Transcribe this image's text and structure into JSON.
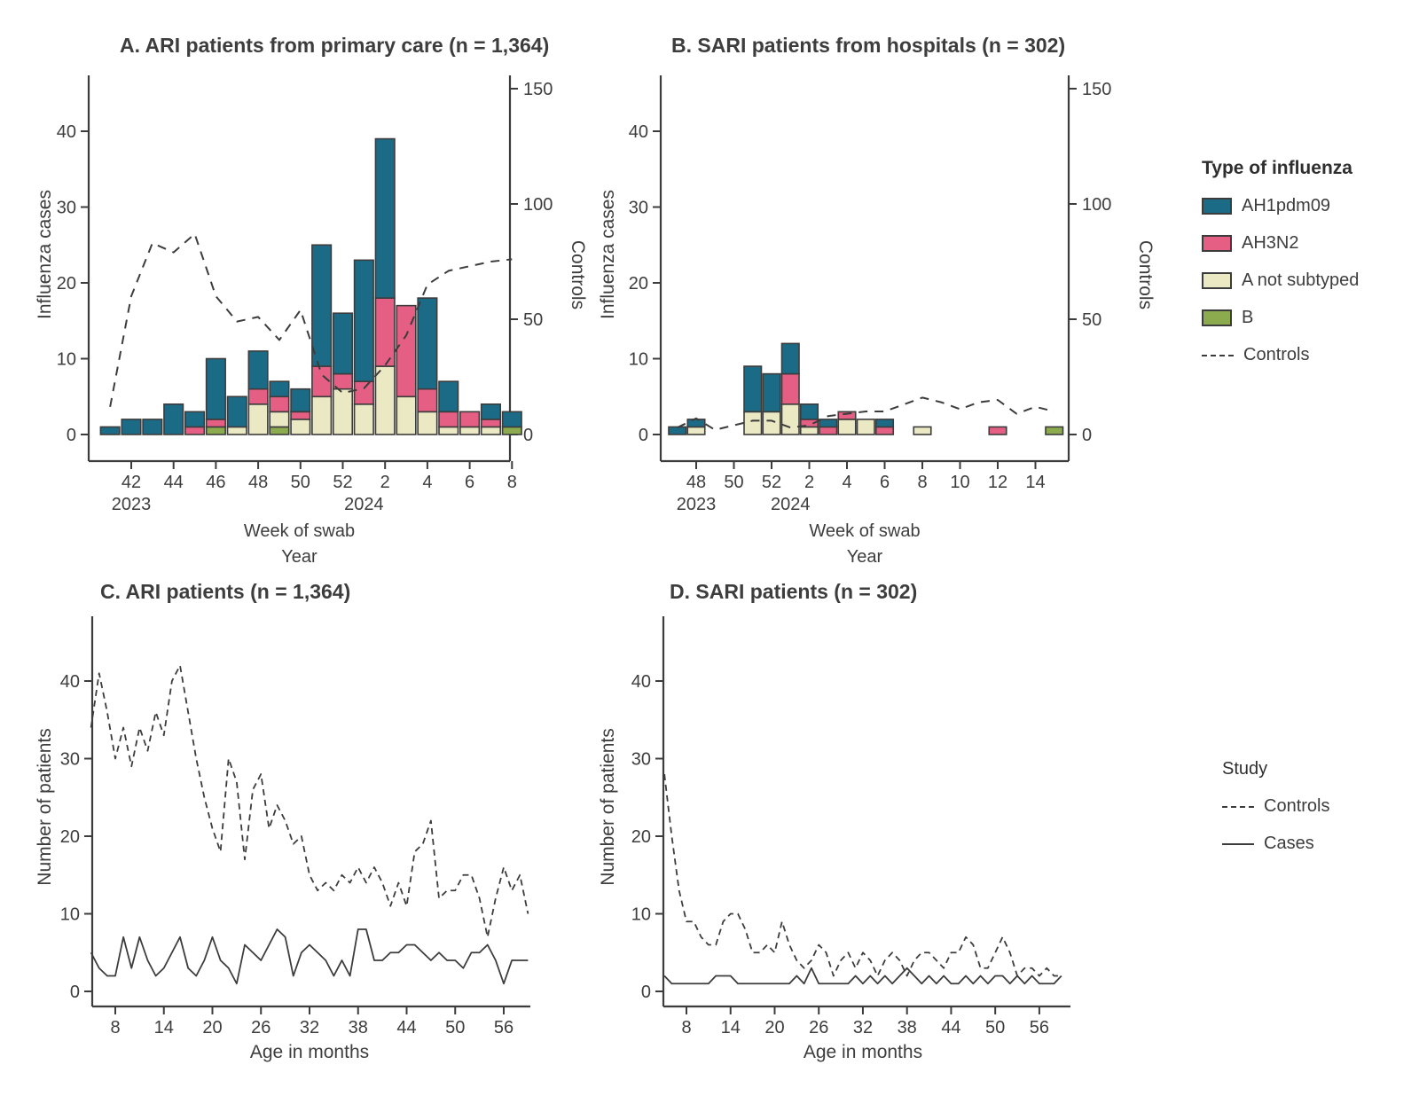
{
  "background": "#ffffff",
  "colors": {
    "AH1pdm09": "#1c6b86",
    "AH3N2": "#e55f84",
    "A not subtyped": "#ebe9c4",
    "B": "#8cab4f",
    "ink": "#3c3c3c",
    "text": "#3d3d3d"
  },
  "legend_influenza": {
    "title": "Type of influenza",
    "items": [
      {
        "label": "AH1pdm09",
        "swatch": "AH1pdm09"
      },
      {
        "label": "AH3N2",
        "swatch": "AH3N2"
      },
      {
        "label": "A not subtyped",
        "swatch": "A not subtyped"
      },
      {
        "label": "B",
        "swatch": "B"
      },
      {
        "label": "Controls",
        "line": "dashed"
      }
    ]
  },
  "legend_study": {
    "title": "Study",
    "items": [
      {
        "label": "Controls",
        "line": "dashed"
      },
      {
        "label": "Cases",
        "line": "solid"
      }
    ]
  },
  "chart_data": [
    {
      "id": "A",
      "type": "stacked-bar-with-line",
      "title": "A.  ARI patients from primary care (n = 1,364)",
      "ylabel_left": "Influenza cases",
      "ylabel_right": "Controls",
      "xlabel": "Week of swab",
      "xlabel2": "Year",
      "yticks_left": [
        0,
        10,
        20,
        30,
        40
      ],
      "yticks_right": [
        0,
        50,
        100,
        150
      ],
      "weeks": [
        "41",
        "42",
        "43",
        "44",
        "45",
        "46",
        "47",
        "48",
        "49",
        "50",
        "51",
        "52",
        "1",
        "2",
        "3",
        "4",
        "5",
        "6",
        "7",
        "8"
      ],
      "xtick_weeks": [
        "42",
        "44",
        "46",
        "48",
        "50",
        "52",
        "2",
        "4",
        "6",
        "8"
      ],
      "year_labels": [
        {
          "text": "2023",
          "week": "42"
        },
        {
          "text": "2024",
          "week": "1"
        }
      ],
      "stack_order": [
        "B",
        "A not subtyped",
        "AH3N2",
        "AH1pdm09"
      ],
      "series": {
        "AH1pdm09": [
          1,
          2,
          2,
          4,
          2,
          8,
          4,
          5,
          2,
          3,
          16,
          8,
          16,
          21,
          0,
          12,
          4,
          0,
          2,
          2
        ],
        "AH3N2": [
          0,
          0,
          0,
          0,
          1,
          1,
          0,
          2,
          2,
          1,
          4,
          2,
          3,
          9,
          12,
          3,
          2,
          2,
          1,
          0
        ],
        "A not subtyped": [
          0,
          0,
          0,
          0,
          0,
          0,
          1,
          4,
          2,
          2,
          5,
          6,
          4,
          9,
          5,
          3,
          1,
          1,
          1,
          0
        ],
        "B": [
          0,
          0,
          0,
          0,
          0,
          1,
          0,
          0,
          1,
          0,
          0,
          0,
          0,
          0,
          0,
          0,
          0,
          0,
          0,
          1
        ]
      },
      "controls": [
        12,
        60,
        83,
        79,
        87,
        60,
        49,
        51,
        41,
        54,
        26,
        18,
        20,
        30,
        43,
        65,
        71,
        73,
        75,
        76
      ]
    },
    {
      "id": "B",
      "type": "stacked-bar-with-line",
      "title": "B. SARI patients from hospitals (n = 302)",
      "ylabel_left": "Influenza cases",
      "ylabel_right": "Controls",
      "xlabel": "Week of swab",
      "xlabel2": "Year",
      "yticks_left": [
        0,
        10,
        20,
        30,
        40
      ],
      "yticks_right": [
        0,
        50,
        100,
        150
      ],
      "weeks": [
        "47",
        "48",
        "49",
        "50",
        "51",
        "52",
        "1",
        "2",
        "3",
        "4",
        "5",
        "6",
        "7",
        "8",
        "9",
        "10",
        "11",
        "12",
        "13",
        "14",
        "15"
      ],
      "xtick_weeks": [
        "48",
        "50",
        "52",
        "2",
        "4",
        "6",
        "8",
        "10",
        "12",
        "14"
      ],
      "year_labels": [
        {
          "text": "2023",
          "week": "48"
        },
        {
          "text": "2024",
          "week": "1"
        }
      ],
      "stack_order": [
        "B",
        "A not subtyped",
        "AH3N2",
        "AH1pdm09"
      ],
      "series": {
        "AH1pdm09": [
          1,
          1,
          0,
          0,
          6,
          5,
          4,
          2,
          1,
          0,
          0,
          1,
          0,
          0,
          0,
          0,
          0,
          0,
          0,
          0,
          0
        ],
        "AH3N2": [
          0,
          0,
          0,
          0,
          0,
          0,
          4,
          1,
          1,
          1,
          0,
          1,
          0,
          0,
          0,
          0,
          0,
          1,
          0,
          0,
          0
        ],
        "A not subtyped": [
          0,
          1,
          0,
          0,
          3,
          3,
          4,
          1,
          0,
          2,
          2,
          0,
          0,
          1,
          0,
          0,
          0,
          0,
          0,
          0,
          0
        ],
        "B": [
          0,
          0,
          0,
          0,
          0,
          0,
          0,
          0,
          0,
          0,
          0,
          0,
          0,
          0,
          0,
          0,
          0,
          0,
          0,
          0,
          1
        ]
      },
      "controls": [
        3,
        7,
        2,
        4,
        6,
        6,
        3,
        4,
        8,
        9,
        10,
        10,
        13,
        16,
        14,
        11,
        14,
        15,
        9,
        12,
        10
      ]
    },
    {
      "id": "C",
      "type": "line",
      "title": "C. ARI patients (n = 1,364)",
      "ylabel": "Number of patients",
      "xlabel": "Age in months",
      "age_start": 5,
      "xticks": [
        8,
        14,
        20,
        26,
        32,
        38,
        44,
        50,
        56
      ],
      "yticks": [
        0,
        10,
        20,
        30,
        40
      ],
      "controls": [
        34,
        41,
        36,
        30,
        34,
        29,
        34,
        31,
        36,
        33,
        40,
        42,
        36,
        30,
        25,
        21,
        18,
        30,
        27,
        17,
        26,
        28,
        21,
        24,
        22,
        19,
        20,
        15,
        13,
        14,
        13,
        15,
        14,
        16,
        14,
        16,
        14,
        11,
        14,
        11,
        18,
        19,
        22,
        12,
        13,
        13,
        15,
        15,
        12,
        7,
        12,
        16,
        13,
        15,
        10
      ],
      "cases": [
        5,
        3,
        2,
        2,
        7,
        3,
        7,
        4,
        2,
        3,
        5,
        7,
        3,
        2,
        4,
        7,
        4,
        3,
        1,
        6,
        5,
        4,
        6,
        8,
        7,
        2,
        5,
        6,
        5,
        4,
        2,
        4,
        2,
        8,
        8,
        4,
        4,
        5,
        5,
        6,
        6,
        5,
        4,
        5,
        4,
        4,
        3,
        5,
        5,
        6,
        4,
        1,
        4,
        4,
        4
      ]
    },
    {
      "id": "D",
      "type": "line",
      "title": "D. SARI patients (n = 302)",
      "ylabel": "Number of patients",
      "xlabel": "Age in months",
      "age_start": 5,
      "xticks": [
        8,
        14,
        20,
        26,
        32,
        38,
        44,
        50,
        56
      ],
      "yticks": [
        0,
        10,
        20,
        30,
        40
      ],
      "controls": [
        28,
        20,
        13,
        9,
        9,
        7,
        6,
        6,
        9,
        10,
        10,
        8,
        5,
        5,
        6,
        5,
        9,
        6,
        4,
        3,
        4,
        6,
        5,
        2,
        4,
        5,
        3,
        5,
        4,
        2,
        4,
        5,
        4,
        2,
        4,
        5,
        5,
        4,
        3,
        5,
        5,
        7,
        6,
        3,
        3,
        5,
        7,
        5,
        2,
        3,
        3,
        2,
        3,
        2,
        2
      ],
      "cases": [
        2,
        1,
        1,
        1,
        1,
        1,
        1,
        2,
        2,
        2,
        1,
        1,
        1,
        1,
        1,
        1,
        1,
        1,
        2,
        1,
        3,
        1,
        1,
        1,
        1,
        1,
        2,
        1,
        2,
        1,
        2,
        1,
        2,
        3,
        2,
        1,
        2,
        1,
        2,
        1,
        1,
        2,
        1,
        2,
        1,
        2,
        2,
        1,
        2,
        1,
        2,
        1,
        1,
        1,
        2
      ]
    }
  ]
}
